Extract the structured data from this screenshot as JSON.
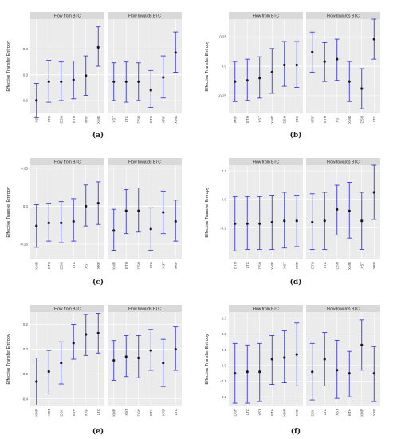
{
  "chart_data": [
    {
      "type": "errorbar",
      "caption": "(a)",
      "ylabel": "Effective Transfer Entropy",
      "ylim": [
        -0.45,
        0.65
      ],
      "yticks": [
        -0.3,
        0.0,
        0.3
      ],
      "panels": [
        {
          "title": "Flow from BTC",
          "categories": [
            "XST",
            "LTC",
            "DSH",
            "ETH",
            "XRP",
            "XMR"
          ],
          "values": [
            -0.3,
            -0.08,
            -0.08,
            -0.06,
            -0.01,
            0.32
          ],
          "lower": [
            -0.5,
            -0.32,
            -0.3,
            -0.28,
            -0.24,
            0.1
          ],
          "upper": [
            -0.1,
            0.17,
            0.15,
            0.16,
            0.22,
            0.56
          ]
        },
        {
          "title": "Flow towards BTC",
          "categories": [
            "XST",
            "LTC",
            "DSH",
            "ETH",
            "XRP",
            "XMR"
          ],
          "values": [
            -0.08,
            -0.08,
            -0.08,
            -0.18,
            -0.03,
            0.26
          ],
          "lower": [
            -0.3,
            -0.32,
            -0.3,
            -0.38,
            -0.27,
            0.03
          ],
          "upper": [
            0.14,
            0.15,
            0.14,
            0.05,
            0.22,
            0.5
          ]
        }
      ]
    },
    {
      "type": "errorbar",
      "caption": "(b)",
      "ylabel": "Effective Transfer Entropy",
      "ylim": [
        -0.4,
        0.4
      ],
      "yticks": [
        -0.25,
        0.0,
        0.25
      ],
      "panels": [
        {
          "title": "Flow from BTC",
          "categories": [
            "XRP",
            "ETH",
            "XST",
            "XMR",
            "DSH",
            "LTC"
          ],
          "values": [
            -0.13,
            -0.12,
            -0.1,
            -0.05,
            0.01,
            0.01
          ],
          "lower": [
            -0.3,
            -0.29,
            -0.27,
            -0.23,
            -0.17,
            -0.18
          ],
          "upper": [
            0.04,
            0.06,
            0.08,
            0.15,
            0.21,
            0.21
          ]
        },
        {
          "title": "Flow towards BTC",
          "categories": [
            "XRP",
            "ETH",
            "XST",
            "XMR",
            "DSH",
            "LTC"
          ],
          "values": [
            0.12,
            0.04,
            0.06,
            -0.13,
            -0.19,
            0.23
          ],
          "lower": [
            -0.05,
            -0.13,
            -0.12,
            -0.3,
            -0.36,
            0.06
          ],
          "upper": [
            0.29,
            0.2,
            0.23,
            0.04,
            -0.02,
            0.4
          ]
        }
      ]
    },
    {
      "type": "errorbar",
      "caption": "(c)",
      "ylabel": "Effective Transfer Entropy",
      "ylim": [
        -0.35,
        0.27
      ],
      "yticks": [
        -0.25,
        0.0,
        0.25
      ],
      "panels": [
        {
          "title": "Flow from BTC",
          "categories": [
            "XMR",
            "ETH",
            "DSH",
            "LTC",
            "XST",
            "XRP"
          ],
          "values": [
            -0.13,
            -0.11,
            -0.11,
            -0.1,
            0.0,
            0.02
          ],
          "lower": [
            -0.27,
            -0.23,
            -0.24,
            -0.23,
            -0.13,
            -0.12
          ],
          "upper": [
            0.01,
            0.02,
            0.03,
            0.05,
            0.14,
            0.16
          ]
        },
        {
          "title": "Flow towards BTC",
          "categories": [
            "XMR",
            "ETH",
            "DSH",
            "LTC",
            "XST",
            "XRP"
          ],
          "values": [
            -0.16,
            -0.03,
            -0.03,
            -0.15,
            -0.04,
            -0.1
          ],
          "lower": [
            -0.29,
            -0.18,
            -0.17,
            -0.29,
            -0.18,
            -0.23
          ],
          "upper": [
            -0.02,
            0.11,
            0.12,
            -0.01,
            0.1,
            0.04
          ]
        }
      ]
    },
    {
      "type": "errorbar",
      "caption": "(d)",
      "ylabel": "Effective Transfer Entropy",
      "ylim": [
        -0.42,
        0.24
      ],
      "yticks": [
        -0.2,
        0.0,
        0.2
      ],
      "panels": [
        {
          "title": "Flow from BTC",
          "categories": [
            "ETH",
            "LTC",
            "DSH",
            "XMR",
            "XST",
            "XRP"
          ],
          "values": [
            -0.17,
            -0.17,
            -0.17,
            -0.16,
            -0.15,
            -0.15
          ],
          "lower": [
            -0.36,
            -0.35,
            -0.35,
            -0.35,
            -0.34,
            -0.33
          ],
          "upper": [
            0.02,
            0.02,
            0.02,
            0.03,
            0.05,
            0.03
          ]
        },
        {
          "title": "Flow towards BTC",
          "categories": [
            "ETH",
            "LTC",
            "DSH",
            "XMR",
            "XST",
            "XRP"
          ],
          "values": [
            -0.16,
            -0.15,
            -0.07,
            -0.08,
            -0.15,
            0.05
          ],
          "lower": [
            -0.35,
            -0.35,
            -0.25,
            -0.27,
            -0.35,
            -0.14
          ],
          "upper": [
            0.04,
            0.05,
            0.1,
            0.12,
            0.05,
            0.24
          ]
        }
      ]
    },
    {
      "type": "errorbar",
      "caption": "(e)",
      "ylabel": "Effective Transfer Entropy",
      "ylim": [
        -0.46,
        0.3
      ],
      "yticks": [
        -0.4,
        -0.2,
        0.0,
        0.2
      ],
      "panels": [
        {
          "title": "Flow from BTC",
          "categories": [
            "XMR",
            "XST",
            "DSH",
            "ETH",
            "XRP",
            "LTC"
          ],
          "values": [
            -0.26,
            -0.18,
            -0.11,
            0.05,
            0.12,
            0.13
          ],
          "lower": [
            -0.45,
            -0.36,
            -0.28,
            -0.08,
            -0.05,
            -0.03
          ],
          "upper": [
            -0.07,
            -0.01,
            0.06,
            0.2,
            0.28,
            0.29
          ]
        },
        {
          "title": "Flow towards BTC",
          "categories": [
            "XMR",
            "XST",
            "DSH",
            "ETH",
            "XRP",
            "LTC"
          ],
          "values": [
            -0.09,
            -0.06,
            -0.07,
            -0.01,
            -0.11,
            0.0
          ],
          "lower": [
            -0.25,
            -0.22,
            -0.23,
            -0.17,
            -0.3,
            -0.17
          ],
          "upper": [
            0.07,
            0.11,
            0.11,
            0.16,
            0.08,
            0.18
          ]
        }
      ]
    },
    {
      "type": "errorbar",
      "caption": "(f)",
      "ylabel": "Effective Transfer Entropy",
      "ylim": [
        -0.26,
        0.34
      ],
      "yticks": [
        -0.2,
        -0.1,
        0.0,
        0.1,
        0.2,
        0.3
      ],
      "panels": [
        {
          "title": "Flow from BTC",
          "categories": [
            "DSH",
            "LTC",
            "XST",
            "ETH",
            "XMR",
            "XRP"
          ],
          "values": [
            -0.05,
            -0.04,
            -0.04,
            0.04,
            0.05,
            0.07
          ],
          "lower": [
            -0.24,
            -0.24,
            -0.23,
            -0.12,
            -0.11,
            -0.13
          ],
          "upper": [
            0.14,
            0.13,
            0.14,
            0.19,
            0.22,
            0.27
          ]
        },
        {
          "title": "Flow towards BTC",
          "categories": [
            "DSH",
            "LTC",
            "XST",
            "ETH",
            "XMR",
            "XRP"
          ],
          "values": [
            -0.04,
            0.04,
            -0.03,
            -0.05,
            0.13,
            -0.05
          ],
          "lower": [
            -0.22,
            -0.13,
            -0.21,
            -0.2,
            -0.03,
            -0.23
          ],
          "upper": [
            0.14,
            0.21,
            0.16,
            0.09,
            0.29,
            0.12
          ]
        }
      ]
    }
  ]
}
